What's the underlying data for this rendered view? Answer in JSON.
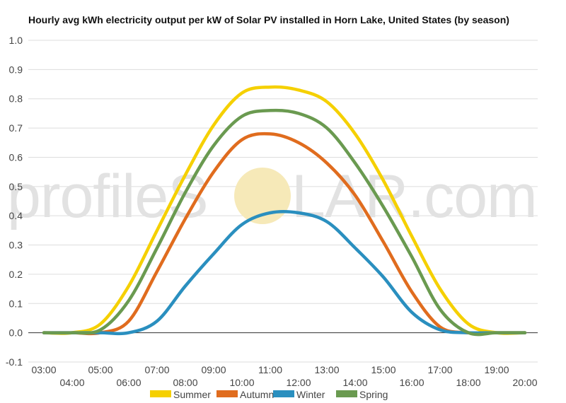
{
  "chart_data": {
    "type": "line",
    "title": "Hourly avg kWh electricity output per kW of Solar PV installed in Horn Lake, United States (by season)",
    "xlabel": "",
    "ylabel": "",
    "x": [
      "03:00",
      "04:00",
      "05:00",
      "06:00",
      "07:00",
      "08:00",
      "09:00",
      "10:00",
      "11:00",
      "12:00",
      "13:00",
      "14:00",
      "15:00",
      "16:00",
      "17:00",
      "18:00",
      "19:00",
      "20:00"
    ],
    "ylim": [
      -0.1,
      1.0
    ],
    "yticks": [
      "-0.1",
      "0.0",
      "0.1",
      "0.2",
      "0.3",
      "0.4",
      "0.5",
      "0.6",
      "0.7",
      "0.8",
      "0.9",
      "1.0"
    ],
    "grid": true,
    "legend_position": "bottom",
    "series": [
      {
        "name": "Summer",
        "color": "#f5d000",
        "values": [
          0.0,
          0.0,
          0.03,
          0.16,
          0.35,
          0.54,
          0.71,
          0.82,
          0.84,
          0.83,
          0.79,
          0.68,
          0.52,
          0.33,
          0.15,
          0.03,
          0.0,
          0.0
        ]
      },
      {
        "name": "Autumn",
        "color": "#e06c1e",
        "values": [
          0.0,
          0.0,
          0.0,
          0.04,
          0.21,
          0.39,
          0.55,
          0.66,
          0.68,
          0.65,
          0.58,
          0.47,
          0.31,
          0.14,
          0.02,
          0.0,
          0.0,
          0.0
        ]
      },
      {
        "name": "Winter",
        "color": "#2a8fbf",
        "values": [
          0.0,
          0.0,
          0.0,
          0.0,
          0.04,
          0.16,
          0.27,
          0.37,
          0.41,
          0.41,
          0.38,
          0.29,
          0.19,
          0.07,
          0.01,
          0.0,
          0.0,
          0.0
        ]
      },
      {
        "name": "Spring",
        "color": "#6a9a50",
        "values": [
          0.0,
          0.0,
          0.01,
          0.11,
          0.29,
          0.48,
          0.64,
          0.74,
          0.76,
          0.75,
          0.7,
          0.58,
          0.43,
          0.26,
          0.08,
          0.0,
          0.0,
          0.0
        ]
      }
    ]
  },
  "watermark": {
    "left_text": "profileS",
    "right_text": "LAR.com",
    "sun_color": "#f6e9b8"
  }
}
